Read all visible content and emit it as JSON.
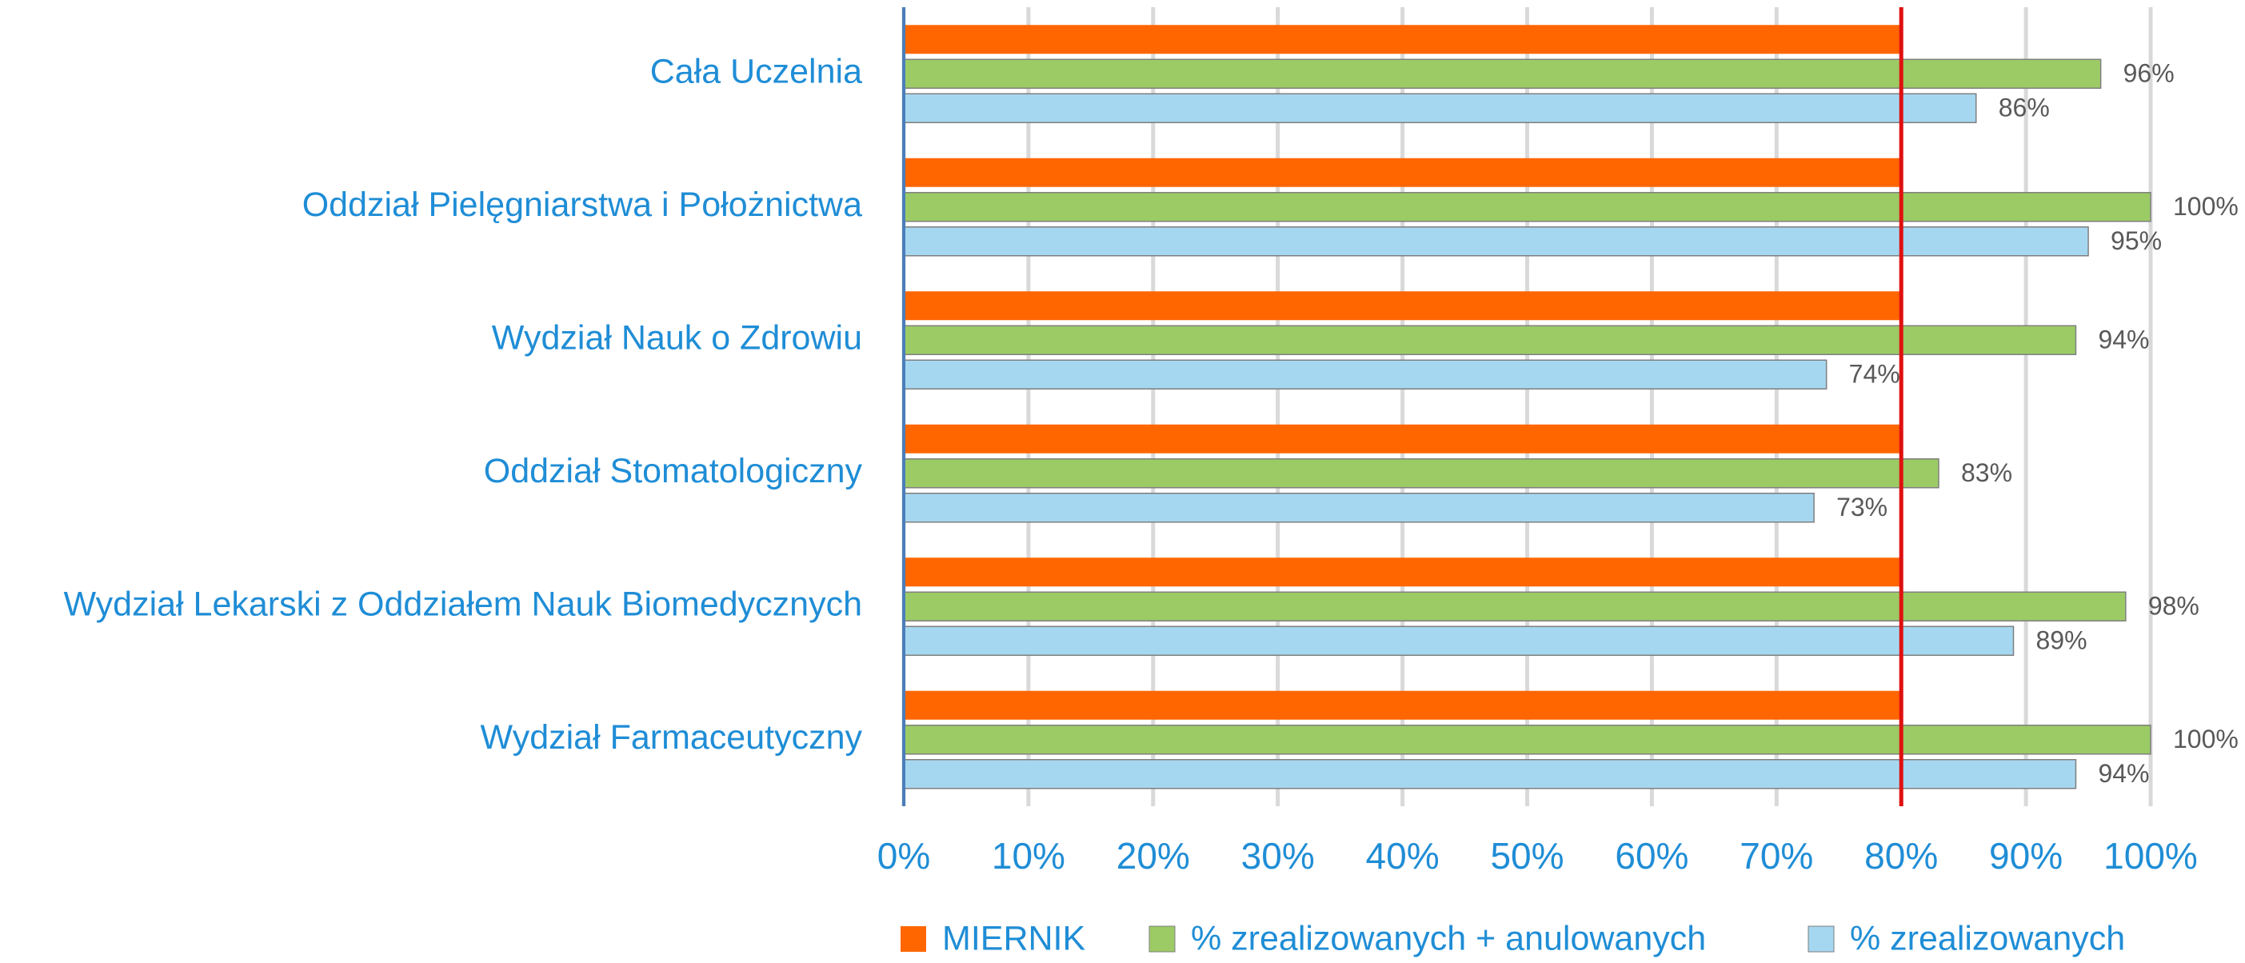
{
  "chart_data": {
    "type": "bar",
    "orientation": "horizontal",
    "categories": [
      "Cała Uczelnia",
      "Oddział Pielęgniarstwa i Położnictwa",
      "Wydział Nauk o Zdrowiu",
      "Oddział Stomatologiczny",
      "Wydział Lekarski z Oddziałem Nauk Biomedycznych",
      "Wydział Farmaceutyczny"
    ],
    "series": [
      {
        "name": "MIERNIK",
        "color": "#ff6600",
        "values": [
          80,
          80,
          80,
          80,
          80,
          80
        ]
      },
      {
        "name": "% zrealizowanych + anulowanych",
        "color": "#9ccb66",
        "values": [
          96,
          100,
          94,
          83,
          98,
          100
        ],
        "value_labels": [
          "96%",
          "100%",
          "94%",
          "83%",
          "98%",
          "100%"
        ]
      },
      {
        "name": "% zrealizowanych",
        "color": "#a6d7f0",
        "values": [
          86,
          95,
          74,
          73,
          89,
          94
        ],
        "value_labels": [
          "86%",
          "95%",
          "74%",
          "73%",
          "89%",
          "94%"
        ]
      }
    ],
    "xlim": [
      0,
      100
    ],
    "xticks": [
      {
        "value": 0,
        "label": "0%"
      },
      {
        "value": 10,
        "label": "10%"
      },
      {
        "value": 20,
        "label": "20%"
      },
      {
        "value": 30,
        "label": "30%"
      },
      {
        "value": 40,
        "label": "40%"
      },
      {
        "value": 50,
        "label": "50%"
      },
      {
        "value": 60,
        "label": "60%"
      },
      {
        "value": 70,
        "label": "70%"
      },
      {
        "value": 80,
        "label": "80%"
      },
      {
        "value": 90,
        "label": "90%"
      },
      {
        "value": 100,
        "label": "100%"
      }
    ],
    "grid": true,
    "legend": "bottom"
  }
}
